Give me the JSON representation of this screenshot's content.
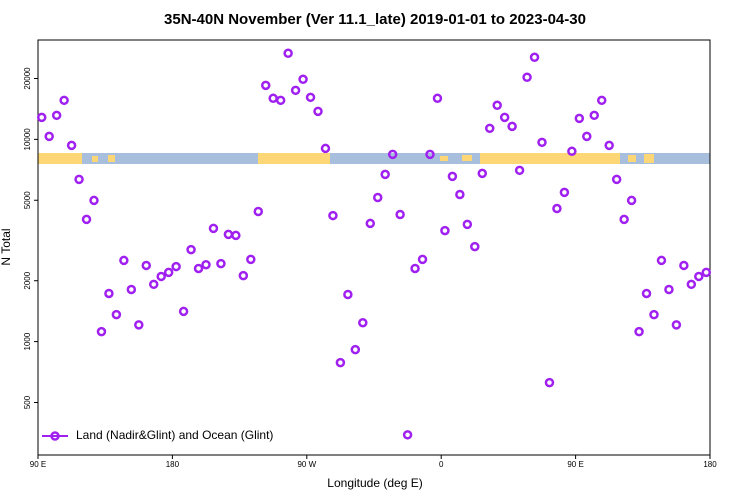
{
  "chart_data": {
    "type": "scatter",
    "title": "35N-40N November (Ver 11.1_late)   2019-01-01 to 2023-04-30",
    "x_label": "Longitude (deg E)",
    "y_label": "N Total",
    "xlim": [
      90,
      540
    ],
    "ylim": [
      275,
      31000
    ],
    "log_y": true,
    "legend": "bottomleft",
    "xticks": [
      {
        "value": 90,
        "label": "90 E"
      },
      {
        "value": 180,
        "label": "180"
      },
      {
        "value": 270,
        "label": "90 W"
      },
      {
        "value": 360,
        "label": "0"
      },
      {
        "value": 450,
        "label": "90 E"
      },
      {
        "value": 540,
        "label": "180"
      }
    ],
    "yticks": [
      500,
      1000,
      2000,
      5000,
      10000,
      20000
    ],
    "x": [
      92.5,
      97.5,
      102.5,
      107.5,
      112.5,
      117.5,
      122.5,
      127.5,
      132.5,
      137.5,
      142.5,
      147.5,
      152.5,
      157.5,
      162.5,
      167.5,
      172.5,
      177.5,
      182.5,
      187.5,
      192.5,
      197.5,
      202.5,
      207.5,
      212.5,
      217.5,
      222.5,
      227.5,
      232.5,
      237.5,
      242.5,
      247.5,
      252.5,
      257.5,
      262.5,
      267.5,
      272.5,
      277.5,
      282.5,
      287.5,
      292.5,
      297.5,
      302.5,
      307.5,
      312.5,
      317.5,
      322.5,
      327.5,
      332.5,
      337.5,
      342.5,
      347.5,
      352.5,
      357.5,
      362.5,
      367.5,
      372.5,
      377.5,
      382.5,
      387.5,
      392.5,
      397.5,
      402.5,
      407.5,
      412.5,
      417.5,
      422.5,
      427.5,
      432.5,
      437.5,
      442.5,
      447.5,
      452.5,
      457.5,
      462.5,
      467.5,
      472.5,
      477.5,
      482.5,
      487.5,
      492.5,
      497.5,
      502.5,
      507.5,
      512.5,
      517.5,
      522.5,
      527.5,
      532.5,
      537.5
    ],
    "series": [
      {
        "name": "Land (Nadir&Glint) and Ocean (Glint)",
        "color": "#a020f0",
        "values": [
          12850,
          10350,
          13150,
          15600,
          9340,
          6340,
          4020,
          4990,
          1120,
          1730,
          1360,
          2520,
          1810,
          1210,
          2380,
          1920,
          2100,
          2200,
          2350,
          1410,
          2850,
          2300,
          2400,
          3630,
          2430,
          3390,
          3350,
          2120,
          2550,
          4400,
          18500,
          15960,
          15600,
          26660,
          17480,
          19820,
          16140,
          13760,
          9020,
          4200,
          787,
          1710,
          913,
          1240,
          3840,
          5160,
          6710,
          8430,
          4250,
          346,
          2300,
          2550,
          8430,
          15960,
          3540,
          6560,
          5340,
          3800,
          2950,
          6790,
          11340,
          14740,
          12850,
          11600,
          7030,
          20280,
          25460,
          9670,
          627,
          4550,
          5470,
          8730,
          12700,
          10350,
          13150,
          15600,
          9340,
          6340,
          4020,
          4990,
          1120,
          1730,
          1360,
          2520,
          1810,
          1210,
          2380,
          1920,
          2100,
          2200
        ]
      }
    ]
  }
}
